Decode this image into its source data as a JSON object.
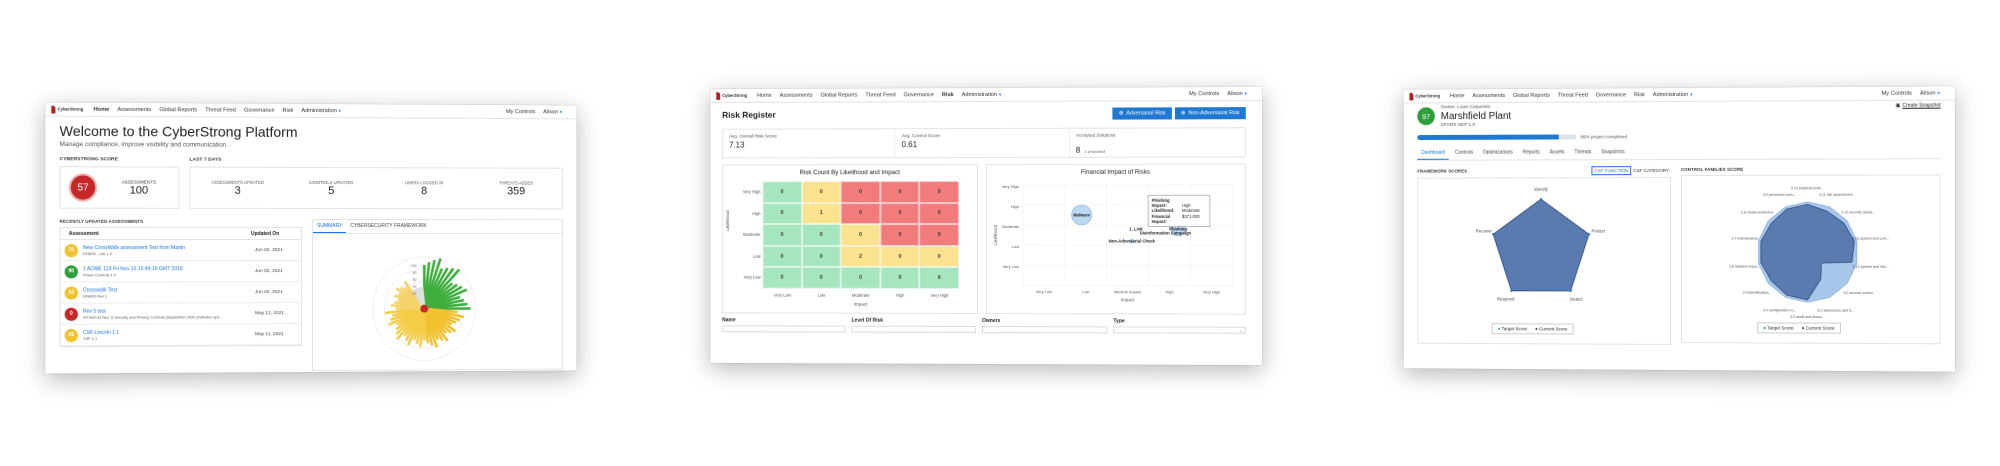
{
  "colors": {
    "red": "#c62828",
    "green": "#2e9e3b",
    "yellow": "#f2c12e",
    "blue": "#1f78d1",
    "grid_green": "#a6e6bf",
    "grid_yellow": "#fbe28f",
    "grid_red": "#f27b7b"
  },
  "w1": {
    "logo": "CyberStrong",
    "nav": [
      "Home",
      "Assessments",
      "Global Reports",
      "Threat Feed",
      "Governance",
      "Risk",
      "Administration"
    ],
    "nav_right": [
      "My Controls",
      "Alison"
    ],
    "title": "Welcome to the CyberStrong Platform",
    "subtitle": "Manage compliance, improve visibility and communication.",
    "score_label": "CYBERSTRONG SCORE",
    "last7": "LAST 7 DAYS",
    "score": "57",
    "assessments_label": "ASSESSMENTS",
    "assessments_value": "100",
    "stats": [
      {
        "label": "ASSESSMENTS UPDATED",
        "value": "3"
      },
      {
        "label": "CONTROLS UPDATED",
        "value": "5"
      },
      {
        "label": "USERS LOGGED IN",
        "value": "8"
      },
      {
        "label": "THREATS ADDED",
        "value": "359"
      }
    ],
    "recent_label": "RECENTLY UPDATED ASSESSMENTS",
    "col_assessment": "Assessment",
    "col_updated": "Updated On",
    "rows": [
      {
        "score": "75",
        "color": "#f2c12e",
        "name": "New CrossWalk assessment Test from Martin",
        "sub": "DFARS - Lite 1.0",
        "date": "Jun 02, 2021"
      },
      {
        "score": "90",
        "color": "#2e9e3b",
        "name": "1 ACME 123 Fri Nov 16 15:49:19 GMT 2018",
        "sub": "Power Controls 1.0",
        "date": "Jun 02, 2021"
      },
      {
        "score": "63",
        "color": "#f2c12e",
        "name": "Crosswalk Test",
        "sub": "DFARS Rev 1",
        "date": "Jun 02, 2021"
      },
      {
        "score": "0",
        "color": "#c62828",
        "name": "Rev 5 test",
        "sub": "SP 800-53 Rev. 5 Security and Privacy Controls (September 2020 (includes upd...",
        "date": "May 12, 2021"
      },
      {
        "score": "65",
        "color": "#f2c12e",
        "name": "CSF Lincoln 1.1",
        "sub": "CSF 1.1",
        "date": "May 11, 2021"
      }
    ],
    "tabs": [
      "SUMMARY",
      "CYBERSECURITY FRAMEWORK"
    ],
    "radial_ticks": [
      "100",
      "80",
      "60",
      "40",
      "20"
    ]
  },
  "w2": {
    "logo": "CyberStrong",
    "nav": [
      "Home",
      "Assessments",
      "Global Reports",
      "Threat Feed",
      "Governance",
      "Risk",
      "Administration"
    ],
    "nav_right": [
      "My Controls",
      "Alison"
    ],
    "title": "Risk Register",
    "btn_adv": "Adversarial Risk",
    "btn_non": "Non-Adversarial Risk",
    "kpis": [
      {
        "label": "Avg. Overall Risk Score",
        "value": "7.13",
        "extra": ""
      },
      {
        "label": "Avg. Control Score",
        "value": "0.61",
        "extra": ""
      },
      {
        "label": "Accepted Solutions",
        "value": "8",
        "extra": "1 proposed"
      }
    ],
    "heatmap_title": "Risk Count By Likelihood and Impact",
    "heatmap_rows": [
      "Very High",
      "High",
      "Moderate",
      "Low",
      "Very Low"
    ],
    "heatmap_cols": [
      "Very Low",
      "Low",
      "Moderate",
      "High",
      "Very High"
    ],
    "heatmap_values": [
      [
        "0",
        "0",
        "0",
        "0",
        "0"
      ],
      [
        "0",
        "1",
        "0",
        "0",
        "0"
      ],
      [
        "0",
        "0",
        "0",
        "0",
        "0"
      ],
      [
        "0",
        "0",
        "2",
        "0",
        "0"
      ],
      [
        "0",
        "0",
        "0",
        "0",
        "0"
      ]
    ],
    "heatmap_colors": [
      [
        "g",
        "y",
        "r",
        "r",
        "r"
      ],
      [
        "g",
        "y",
        "r",
        "r",
        "r"
      ],
      [
        "g",
        "g",
        "y",
        "r",
        "r"
      ],
      [
        "g",
        "g",
        "y",
        "y",
        "y"
      ],
      [
        "g",
        "g",
        "g",
        "g",
        "g"
      ]
    ],
    "xlabel": "Impact",
    "ylabel": "Likelihood",
    "bubble_title": "Financial Impact of Risks",
    "bubble_rows": [
      "Very High",
      "High",
      "Moderate",
      "Low",
      "Very Low"
    ],
    "bubble_cols": [
      "Very Low",
      "Low",
      "Medium Impact",
      "High",
      "Very High"
    ],
    "bubbles": [
      {
        "label": "Malware",
        "x": 1,
        "y": 3,
        "r": 10
      },
      {
        "label": "Phishing",
        "x": 3.3,
        "y": 2.3,
        "r": 7
      },
      {
        "label": "Disinformation Campaign",
        "x": 3,
        "y": 2.1,
        "r": 0
      },
      {
        "label": "1. Link",
        "x": 2.3,
        "y": 2.3,
        "r": 0
      },
      {
        "label": "Non-Adversarial Check",
        "x": 2.2,
        "y": 1.7,
        "r": 2
      }
    ],
    "tooltip": {
      "title": "Phishing",
      "rows": [
        [
          "Impact:",
          "High"
        ],
        [
          "Likelihood:",
          "Moderate"
        ],
        [
          "Financial Impact:",
          "$371,000"
        ]
      ]
    },
    "table_cols": [
      "Name",
      "Level Of Risk",
      "Owners",
      "Type"
    ]
  },
  "w3": {
    "logo": "CyberStrong",
    "nav": [
      "Home",
      "Assessments",
      "Global Reports",
      "Threat Feed",
      "Governance",
      "Risk",
      "Administration"
    ],
    "nav_right": [
      "My Controls",
      "Alison"
    ],
    "score": "97",
    "owner": "Owner: Louis Carpenito",
    "title": "Marshfield Plant",
    "sub": "DFARS NEP 1.0",
    "snapshot": "Create Snapshot",
    "progress": 89,
    "progress_text": "89% project completed",
    "tabs": [
      "Dashboard",
      "Controls",
      "Optimizations",
      "Reports",
      "Assets",
      "Threats",
      "Snapshots"
    ],
    "fw_label": "FRAMEWORK SCORES",
    "btn_function": "CSF FUNCTION",
    "btn_category": "CSF CATEGORY",
    "cf_label": "CONTROL FAMILIES SCORE",
    "pent_labels": [
      "Identify",
      "Protect",
      "Detect",
      "Respond",
      "Recover"
    ],
    "legend": [
      "Target Score",
      "Current Score"
    ],
    "families": [
      "3.10 physical prote...",
      "3.11 risk assessment",
      "3.12 security asses...",
      "3.13 system and com...",
      "3.14 system and info...",
      "3.2 access control",
      "3.2 awareness and tr...",
      "3.3 audit and accou...",
      "3.4 configuration m...",
      "3.5 identification...",
      "3.6 incident respo...",
      "3.7 maintenance",
      "3.8 media protection",
      "3.9 personnel secu..."
    ]
  }
}
